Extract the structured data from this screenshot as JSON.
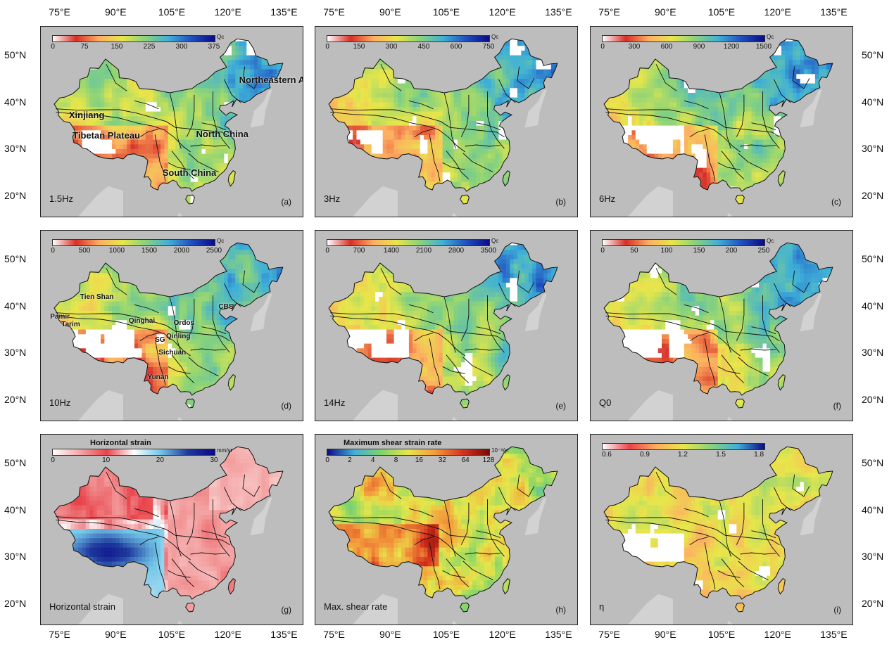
{
  "lon_labels": [
    "75°E",
    "90°E",
    "105°E",
    "120°E",
    "135°E"
  ],
  "lat_labels": [
    "50°N",
    "40°N",
    "30°N",
    "20°N"
  ],
  "panels": [
    {
      "id": "a",
      "letter": "(a)",
      "label": "1.5Hz",
      "unit": "Qc",
      "cbar_ticks": [
        "0",
        "75",
        "150",
        "225",
        "300",
        "375"
      ],
      "cmap": "qc",
      "cbar_title": "",
      "regions": [
        "Northeastern Asia",
        "Xinjiang",
        "Tibetan Plateau",
        "North China",
        "South China"
      ]
    },
    {
      "id": "b",
      "letter": "(b)",
      "label": "3Hz",
      "unit": "Qc",
      "cbar_ticks": [
        "0",
        "150",
        "300",
        "450",
        "600",
        "750"
      ],
      "cmap": "qc",
      "cbar_title": ""
    },
    {
      "id": "c",
      "letter": "(c)",
      "label": "6Hz",
      "unit": "Qc",
      "cbar_ticks": [
        "0",
        "300",
        "600",
        "900",
        "1200",
        "1500"
      ],
      "cmap": "qc",
      "cbar_title": ""
    },
    {
      "id": "d",
      "letter": "(d)",
      "label": "10Hz",
      "unit": "Qc",
      "cbar_ticks": [
        "0",
        "500",
        "1000",
        "1500",
        "2000",
        "2500"
      ],
      "cmap": "qc",
      "cbar_title": "",
      "regions": [
        "Tien Shan",
        "Pamir",
        "Tarim",
        "Qinghai",
        "Ordos",
        "Qinling",
        "SG",
        "Sichuan",
        "Yunan",
        "CBS"
      ]
    },
    {
      "id": "e",
      "letter": "(e)",
      "label": "14Hz",
      "unit": "Qc",
      "cbar_ticks": [
        "0",
        "700",
        "1400",
        "2100",
        "2800",
        "3500"
      ],
      "cmap": "qc",
      "cbar_title": ""
    },
    {
      "id": "f",
      "letter": "(f)",
      "label": "Q0",
      "unit": "Qc",
      "cbar_ticks": [
        "0",
        "50",
        "100",
        "150",
        "200",
        "250"
      ],
      "cmap": "qc",
      "cbar_title": ""
    },
    {
      "id": "g",
      "letter": "(g)",
      "label": "Horizontal strain",
      "unit": "mm/yr",
      "cbar_ticks": [
        "0",
        "10",
        "20",
        "30"
      ],
      "cmap": "strain",
      "cbar_title": "Horizontal strain"
    },
    {
      "id": "h",
      "letter": "(h)",
      "label": "Max. shear rate",
      "unit": "10⁻⁹/yr",
      "cbar_ticks": [
        "0",
        "2",
        "4",
        "8",
        "16",
        "32",
        "64",
        "128"
      ],
      "cmap": "shear",
      "cbar_title": "Maximum shear strain rate"
    },
    {
      "id": "i",
      "letter": "(i)",
      "label": "η",
      "unit": "",
      "cbar_ticks": [
        "0.6",
        "0.9",
        "1.2",
        "1.5",
        "1.8"
      ],
      "cmap": "eta",
      "cbar_title": ""
    }
  ],
  "colors": {
    "ocean_land_background": "#d2d2d2",
    "qc_scale": [
      "#ffffff",
      "#d73027",
      "#fdae61",
      "#e8e64a",
      "#8ad37a",
      "#3fb0d8",
      "#1f4fc0",
      "#0b0a86"
    ],
    "strain_scale": [
      "#ffffff",
      "#f4a7a7",
      "#e8434a",
      "#ffffff",
      "#72c6e8",
      "#1f3a9e",
      "#0b0a86"
    ],
    "shear_scale": [
      "#0b0a86",
      "#3fb0d8",
      "#7fd46a",
      "#e8e64a",
      "#f39a3c",
      "#d7341e",
      "#7a0a06"
    ],
    "eta_scale": [
      "#ffffff",
      "#e8434a",
      "#fdae61",
      "#e8e64a",
      "#8ad37a",
      "#3fb0d8",
      "#0b0a86"
    ]
  }
}
